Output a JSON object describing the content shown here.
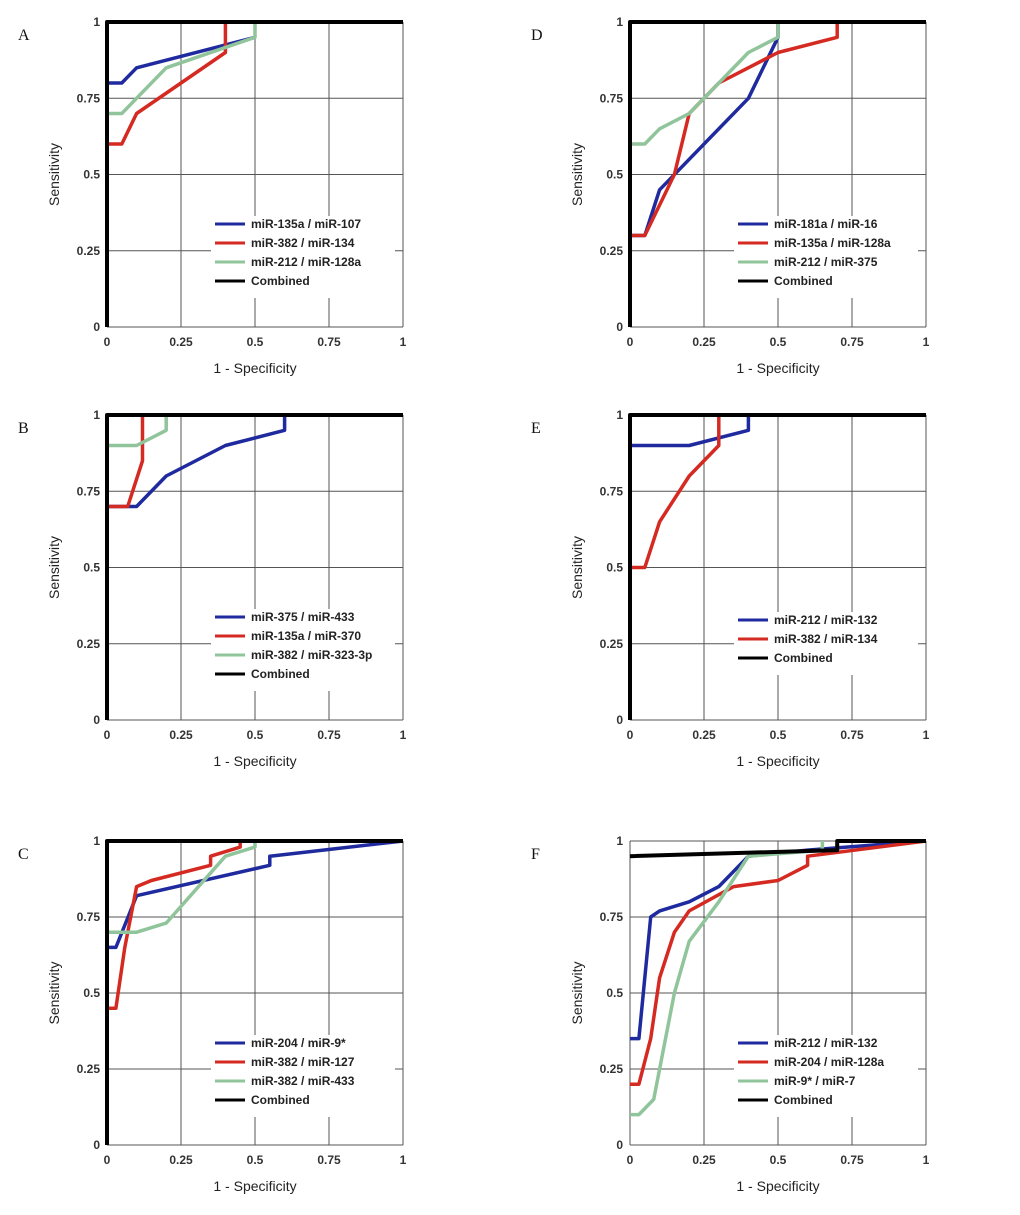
{
  "colors": {
    "blue": "#1f2a9e",
    "red": "#d42a22",
    "green": "#90c49a",
    "black": "#000000",
    "grid": "#555555"
  },
  "chart_data": [
    {
      "type": "line",
      "panel": "A",
      "xlabel": "1 - Specificity",
      "ylabel": "Sensitivity",
      "xlim": [
        0,
        1
      ],
      "ylim": [
        0,
        1
      ],
      "xticks": [
        "0",
        "0.25",
        "0.5",
        "0.75",
        "1"
      ],
      "yticks": [
        "0",
        "0.25",
        "0.5",
        "0.75",
        "1"
      ],
      "series": [
        {
          "name": "miR-135a / miR-107",
          "color": "blue",
          "points": [
            [
              0,
              0.8
            ],
            [
              0.05,
              0.8
            ],
            [
              0.1,
              0.85
            ],
            [
              0.5,
              0.95
            ]
          ]
        },
        {
          "name": "miR-382 / miR-134",
          "color": "red",
          "points": [
            [
              0,
              0.6
            ],
            [
              0.05,
              0.6
            ],
            [
              0.1,
              0.7
            ],
            [
              0.4,
              0.9
            ],
            [
              0.4,
              1.0
            ]
          ]
        },
        {
          "name": "miR-212 / miR-128a",
          "color": "green",
          "points": [
            [
              0,
              0.7
            ],
            [
              0.05,
              0.7
            ],
            [
              0.2,
              0.85
            ],
            [
              0.5,
              0.95
            ],
            [
              0.5,
              1.0
            ]
          ]
        },
        {
          "name": "Combined",
          "color": "black",
          "points": [
            [
              0,
              0
            ],
            [
              0,
              1
            ],
            [
              1,
              1
            ]
          ]
        }
      ]
    },
    {
      "type": "line",
      "panel": "D",
      "xlabel": "1 - Specificity",
      "ylabel": "Sensitivity",
      "xlim": [
        0,
        1
      ],
      "ylim": [
        0,
        1
      ],
      "xticks": [
        "0",
        "0.25",
        "0.5",
        "0.75",
        "1"
      ],
      "yticks": [
        "0",
        "0.25",
        "0.5",
        "0.75",
        "1"
      ],
      "series": [
        {
          "name": "miR-181a / miR-16",
          "color": "blue",
          "points": [
            [
              0,
              0.3
            ],
            [
              0.05,
              0.3
            ],
            [
              0.1,
              0.45
            ],
            [
              0.4,
              0.75
            ],
            [
              0.5,
              0.95
            ],
            [
              0.5,
              1.0
            ]
          ]
        },
        {
          "name": "miR-135a / miR-128a",
          "color": "red",
          "points": [
            [
              0,
              0.3
            ],
            [
              0.05,
              0.3
            ],
            [
              0.15,
              0.5
            ],
            [
              0.2,
              0.7
            ],
            [
              0.3,
              0.8
            ],
            [
              0.5,
              0.9
            ],
            [
              0.7,
              0.95
            ],
            [
              0.7,
              1.0
            ]
          ]
        },
        {
          "name": "miR-212 / miR-375",
          "color": "green",
          "points": [
            [
              0,
              0.6
            ],
            [
              0.05,
              0.6
            ],
            [
              0.1,
              0.65
            ],
            [
              0.2,
              0.7
            ],
            [
              0.4,
              0.9
            ],
            [
              0.5,
              0.95
            ],
            [
              0.5,
              1.0
            ]
          ]
        },
        {
          "name": "Combined",
          "color": "black",
          "points": [
            [
              0,
              0
            ],
            [
              0,
              1
            ],
            [
              1,
              1
            ]
          ]
        }
      ]
    },
    {
      "type": "line",
      "panel": "B",
      "xlabel": "1 - Specificity",
      "ylabel": "Sensitivity",
      "xlim": [
        0,
        1
      ],
      "ylim": [
        0,
        1
      ],
      "xticks": [
        "0",
        "0.25",
        "0.5",
        "0.75",
        "1"
      ],
      "yticks": [
        "0",
        "0.25",
        "0.5",
        "0.75",
        "1"
      ],
      "series": [
        {
          "name": "miR-375 / miR-433",
          "color": "blue",
          "points": [
            [
              0,
              0.7
            ],
            [
              0.1,
              0.7
            ],
            [
              0.2,
              0.8
            ],
            [
              0.4,
              0.9
            ],
            [
              0.6,
              0.95
            ],
            [
              0.6,
              1.0
            ]
          ]
        },
        {
          "name": "miR-135a / miR-370",
          "color": "red",
          "points": [
            [
              0,
              0.7
            ],
            [
              0.07,
              0.7
            ],
            [
              0.12,
              0.85
            ],
            [
              0.12,
              1.0
            ]
          ]
        },
        {
          "name": "miR-382 / miR-323-3p",
          "color": "green",
          "points": [
            [
              0,
              0.9
            ],
            [
              0.1,
              0.9
            ],
            [
              0.2,
              0.95
            ],
            [
              0.2,
              1.0
            ]
          ]
        },
        {
          "name": "Combined",
          "color": "black",
          "points": [
            [
              0,
              0
            ],
            [
              0,
              1
            ],
            [
              1,
              1
            ]
          ]
        }
      ]
    },
    {
      "type": "line",
      "panel": "E",
      "xlabel": "1 - Specificity",
      "ylabel": "Sensitivity",
      "xlim": [
        0,
        1
      ],
      "ylim": [
        0,
        1
      ],
      "xticks": [
        "0",
        "0.25",
        "0.5",
        "0.75",
        "1"
      ],
      "yticks": [
        "0",
        "0.25",
        "0.5",
        "0.75",
        "1"
      ],
      "series": [
        {
          "name": "miR-212 / miR-132",
          "color": "blue",
          "points": [
            [
              0,
              0.9
            ],
            [
              0.2,
              0.9
            ],
            [
              0.4,
              0.95
            ],
            [
              0.4,
              1.0
            ]
          ]
        },
        {
          "name": "miR-382 / miR-134",
          "color": "red",
          "points": [
            [
              0,
              0.5
            ],
            [
              0.05,
              0.5
            ],
            [
              0.1,
              0.65
            ],
            [
              0.2,
              0.8
            ],
            [
              0.3,
              0.9
            ],
            [
              0.3,
              1.0
            ]
          ]
        },
        {
          "name": "Combined",
          "color": "black",
          "points": [
            [
              0,
              0
            ],
            [
              0,
              1
            ],
            [
              1,
              1
            ]
          ]
        }
      ]
    },
    {
      "type": "line",
      "panel": "C",
      "xlabel": "1 - Specificity",
      "ylabel": "Sensitivity",
      "xlim": [
        0,
        1
      ],
      "ylim": [
        0,
        1
      ],
      "xticks": [
        "0",
        "0.25",
        "0.5",
        "0.75",
        "1"
      ],
      "yticks": [
        "0",
        "0.25",
        "0.5",
        "0.75",
        "1"
      ],
      "series": [
        {
          "name": "miR-204 / miR-9*",
          "color": "blue",
          "points": [
            [
              0,
              0.65
            ],
            [
              0.03,
              0.65
            ],
            [
              0.1,
              0.82
            ],
            [
              0.55,
              0.92
            ],
            [
              0.55,
              0.95
            ],
            [
              1,
              1
            ]
          ]
        },
        {
          "name": "miR-382 / miR-127",
          "color": "red",
          "points": [
            [
              0,
              0.45
            ],
            [
              0.03,
              0.45
            ],
            [
              0.06,
              0.65
            ],
            [
              0.1,
              0.85
            ],
            [
              0.15,
              0.87
            ],
            [
              0.35,
              0.92
            ],
            [
              0.35,
              0.95
            ],
            [
              0.45,
              0.98
            ],
            [
              0.45,
              1.0
            ]
          ]
        },
        {
          "name": "miR-382 / miR-433",
          "color": "green",
          "points": [
            [
              0,
              0.7
            ],
            [
              0.1,
              0.7
            ],
            [
              0.2,
              0.73
            ],
            [
              0.4,
              0.95
            ],
            [
              0.5,
              0.98
            ],
            [
              0.5,
              1.0
            ]
          ]
        },
        {
          "name": "Combined",
          "color": "black",
          "points": [
            [
              0,
              0
            ],
            [
              0,
              1
            ],
            [
              1,
              1
            ]
          ]
        }
      ]
    },
    {
      "type": "line",
      "panel": "F",
      "xlabel": "1 - Specificity",
      "ylabel": "Sensitivity",
      "xlim": [
        0,
        1
      ],
      "ylim": [
        0,
        1
      ],
      "xticks": [
        "0",
        "0.25",
        "0.5",
        "0.75",
        "1"
      ],
      "yticks": [
        "0",
        "0.25",
        "0.5",
        "0.75",
        "1"
      ],
      "series": [
        {
          "name": "miR-212 / miR-132",
          "color": "blue",
          "points": [
            [
              0,
              0.35
            ],
            [
              0.03,
              0.35
            ],
            [
              0.07,
              0.75
            ],
            [
              0.1,
              0.77
            ],
            [
              0.2,
              0.8
            ],
            [
              0.3,
              0.85
            ],
            [
              0.4,
              0.95
            ],
            [
              0.6,
              0.97
            ],
            [
              1,
              1
            ]
          ]
        },
        {
          "name": "miR-204 / miR-128a",
          "color": "red",
          "points": [
            [
              0,
              0.2
            ],
            [
              0.03,
              0.2
            ],
            [
              0.07,
              0.35
            ],
            [
              0.1,
              0.55
            ],
            [
              0.15,
              0.7
            ],
            [
              0.2,
              0.77
            ],
            [
              0.35,
              0.85
            ],
            [
              0.5,
              0.87
            ],
            [
              0.6,
              0.92
            ],
            [
              0.6,
              0.95
            ],
            [
              1,
              1
            ]
          ]
        },
        {
          "name": "miR-9* / miR-7",
          "color": "green",
          "points": [
            [
              0,
              0.1
            ],
            [
              0.03,
              0.1
            ],
            [
              0.08,
              0.15
            ],
            [
              0.15,
              0.5
            ],
            [
              0.2,
              0.67
            ],
            [
              0.3,
              0.8
            ],
            [
              0.4,
              0.95
            ],
            [
              0.65,
              0.97
            ],
            [
              0.65,
              1.0
            ]
          ]
        },
        {
          "name": "Combined",
          "color": "black",
          "points": [
            [
              0,
              0.95
            ],
            [
              0.7,
              0.97
            ],
            [
              0.7,
              1.0
            ],
            [
              1,
              1
            ]
          ]
        }
      ]
    }
  ]
}
